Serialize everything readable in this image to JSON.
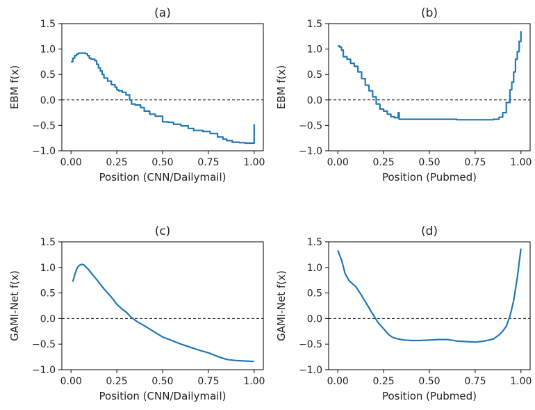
{
  "chart_data": [
    {
      "type": "line",
      "title": "(a)",
      "xlabel": "Position (CNN/Dailymail)",
      "ylabel": "EBM f(x)",
      "xlim": [
        -0.05,
        1.05
      ],
      "ylim": [
        -1.0,
        1.5
      ],
      "xticks": [
        "0.00",
        "0.25",
        "0.50",
        "0.75",
        "1.00"
      ],
      "yticks": [
        "1.5",
        "1.0",
        "0.5",
        "0.0",
        "−0.5",
        "−1.0"
      ],
      "reference_line": {
        "y": 0.0,
        "style": "dashed"
      },
      "series": [
        {
          "color": "#1f77b4",
          "step": true,
          "x": [
            0.0,
            0.01,
            0.02,
            0.03,
            0.04,
            0.06,
            0.08,
            0.09,
            0.1,
            0.11,
            0.13,
            0.14,
            0.15,
            0.16,
            0.17,
            0.18,
            0.2,
            0.22,
            0.24,
            0.25,
            0.26,
            0.28,
            0.3,
            0.32,
            0.33,
            0.35,
            0.38,
            0.4,
            0.43,
            0.46,
            0.5,
            0.53,
            0.56,
            0.6,
            0.64,
            0.67,
            0.72,
            0.76,
            0.8,
            0.83,
            0.85,
            0.88,
            0.92,
            0.95,
            0.97,
            0.98,
            1.0
          ],
          "y": [
            0.75,
            0.82,
            0.87,
            0.9,
            0.92,
            0.92,
            0.91,
            0.87,
            0.82,
            0.8,
            0.77,
            0.7,
            0.63,
            0.57,
            0.5,
            0.43,
            0.37,
            0.3,
            0.25,
            0.2,
            0.18,
            0.15,
            0.1,
            0.0,
            -0.08,
            -0.1,
            -0.15,
            -0.22,
            -0.28,
            -0.32,
            -0.43,
            -0.44,
            -0.48,
            -0.51,
            -0.56,
            -0.6,
            -0.62,
            -0.66,
            -0.73,
            -0.77,
            -0.8,
            -0.83,
            -0.84,
            -0.85,
            -0.85,
            -0.85,
            -0.48
          ]
        }
      ]
    },
    {
      "type": "line",
      "title": "(b)",
      "xlabel": "Position (Pubmed)",
      "ylabel": "EBM f(x)",
      "xlim": [
        -0.05,
        1.05
      ],
      "ylim": [
        -1.0,
        1.5
      ],
      "xticks": [
        "0.00",
        "0.25",
        "0.50",
        "0.75",
        "1.00"
      ],
      "yticks": [
        "1.5",
        "1.0",
        "0.5",
        "0.0",
        "−0.5",
        "−1.0"
      ],
      "reference_line": {
        "y": 0.0,
        "style": "dashed"
      },
      "series": [
        {
          "color": "#1f77b4",
          "step": true,
          "x": [
            0.0,
            0.01,
            0.02,
            0.03,
            0.05,
            0.07,
            0.09,
            0.11,
            0.13,
            0.15,
            0.17,
            0.19,
            0.21,
            0.23,
            0.25,
            0.27,
            0.29,
            0.31,
            0.33,
            0.335,
            0.34,
            0.5,
            0.6,
            0.65,
            0.7,
            0.8,
            0.85,
            0.88,
            0.9,
            0.92,
            0.94,
            0.95,
            0.96,
            0.97,
            0.98,
            0.99,
            1.0
          ],
          "y": [
            1.06,
            1.04,
            0.98,
            0.85,
            0.8,
            0.72,
            0.66,
            0.55,
            0.42,
            0.29,
            0.18,
            0.06,
            -0.08,
            -0.18,
            -0.22,
            -0.28,
            -0.33,
            -0.35,
            -0.25,
            -0.38,
            -0.38,
            -0.38,
            -0.38,
            -0.39,
            -0.39,
            -0.39,
            -0.38,
            -0.34,
            -0.25,
            -0.05,
            0.2,
            0.35,
            0.55,
            0.8,
            0.95,
            1.15,
            1.35
          ]
        }
      ]
    },
    {
      "type": "line",
      "title": "(c)",
      "xlabel": "Position (CNN/Dailymail)",
      "ylabel": "GAMI-Net f(x)",
      "xlim": [
        -0.05,
        1.05
      ],
      "ylim": [
        -1.0,
        1.5
      ],
      "xticks": [
        "0.00",
        "0.25",
        "0.50",
        "0.75",
        "1.00"
      ],
      "yticks": [
        "1.5",
        "1.0",
        "0.5",
        "0.0",
        "−0.5",
        "−1.0"
      ],
      "reference_line": {
        "y": 0.0,
        "style": "dashed"
      },
      "series": [
        {
          "color": "#1f77b4",
          "step": false,
          "x": [
            0.01,
            0.02,
            0.03,
            0.04,
            0.05,
            0.06,
            0.07,
            0.09,
            0.12,
            0.15,
            0.18,
            0.22,
            0.25,
            0.28,
            0.3,
            0.33,
            0.36,
            0.4,
            0.45,
            0.5,
            0.55,
            0.6,
            0.65,
            0.7,
            0.75,
            0.8,
            0.85,
            0.9,
            0.95,
            1.0
          ],
          "y": [
            0.72,
            0.85,
            0.96,
            1.02,
            1.05,
            1.06,
            1.05,
            0.98,
            0.85,
            0.72,
            0.58,
            0.42,
            0.28,
            0.18,
            0.13,
            0.02,
            -0.06,
            -0.14,
            -0.25,
            -0.36,
            -0.43,
            -0.5,
            -0.56,
            -0.62,
            -0.67,
            -0.74,
            -0.8,
            -0.82,
            -0.83,
            -0.84
          ]
        }
      ]
    },
    {
      "type": "line",
      "title": "(d)",
      "xlabel": "Position (Pubmed)",
      "ylabel": "GAMI-Net f(x)",
      "xlim": [
        -0.05,
        1.05
      ],
      "ylim": [
        -1.0,
        1.5
      ],
      "xticks": [
        "0.00",
        "0.25",
        "0.50",
        "0.75",
        "1.00"
      ],
      "yticks": [
        "1.5",
        "1.0",
        "0.5",
        "0.0",
        "−0.5",
        "−1.0"
      ],
      "reference_line": {
        "y": 0.0,
        "style": "dashed"
      },
      "series": [
        {
          "color": "#1f77b4",
          "step": false,
          "x": [
            0.0,
            0.02,
            0.04,
            0.06,
            0.08,
            0.1,
            0.13,
            0.16,
            0.19,
            0.22,
            0.25,
            0.28,
            0.3,
            0.33,
            0.36,
            0.4,
            0.45,
            0.5,
            0.55,
            0.6,
            0.65,
            0.7,
            0.75,
            0.8,
            0.85,
            0.88,
            0.9,
            0.92,
            0.94,
            0.96,
            0.98,
            1.0
          ],
          "y": [
            1.33,
            1.15,
            0.88,
            0.75,
            0.68,
            0.62,
            0.45,
            0.27,
            0.09,
            -0.08,
            -0.2,
            -0.32,
            -0.37,
            -0.4,
            -0.42,
            -0.43,
            -0.43,
            -0.42,
            -0.41,
            -0.41,
            -0.44,
            -0.45,
            -0.46,
            -0.44,
            -0.4,
            -0.32,
            -0.25,
            -0.15,
            0.05,
            0.35,
            0.8,
            1.37
          ]
        }
      ]
    }
  ]
}
